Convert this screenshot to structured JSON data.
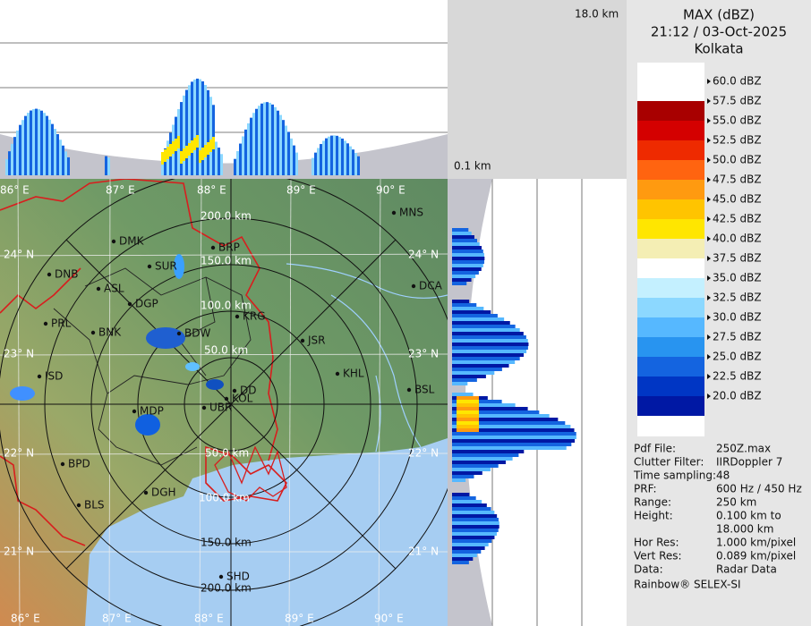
{
  "header": {
    "product": "MAX (dBZ)",
    "datetime": "21:12 / 03-Oct-2025",
    "station": "Kolkata"
  },
  "profile": {
    "top_height": "18.0 km",
    "bottom_height": "0.1 km"
  },
  "legend": {
    "labels": [
      "60.0 dBZ",
      "57.5 dBZ",
      "55.0 dBZ",
      "52.5 dBZ",
      "50.0 dBZ",
      "47.5 dBZ",
      "45.0 dBZ",
      "42.5 dBZ",
      "40.0 dBZ",
      "37.5 dBZ",
      "35.0 dBZ",
      "32.5 dBZ",
      "30.0 dBZ",
      "27.5 dBZ",
      "25.0 dBZ",
      "22.5 dBZ",
      "20.0 dBZ"
    ],
    "colors": [
      "#a80000",
      "#d40000",
      "#ee2a00",
      "#ff6410",
      "#ff9a10",
      "#ffc400",
      "#ffe600",
      "#f4eeb4",
      "#ffffff",
      "#c4f0ff",
      "#8cd8ff",
      "#56b8ff",
      "#2894f0",
      "#1464e0",
      "#0036c4",
      "#0018a4"
    ]
  },
  "map": {
    "lon_labels": [
      "86° E",
      "87° E",
      "88° E",
      "89° E",
      "90° E"
    ],
    "lat_labels": [
      "24° N",
      "23° N",
      "22° N",
      "21° N"
    ],
    "ring_labels": [
      "50.0 km",
      "100.0 km",
      "150.0 km",
      "200.0 km"
    ],
    "cities": [
      "MNS",
      "BRP",
      "DMK",
      "SUR",
      "DNB",
      "ASL",
      "DGP",
      "KRG",
      "PRL",
      "BNK",
      "BDW",
      "JSR",
      "ISD",
      "KHL",
      "BSL",
      "DD",
      "KOL",
      "UBR",
      "MDP",
      "BPD",
      "DGH",
      "BLS",
      "SHD",
      "DCA"
    ]
  },
  "info": {
    "rows": [
      {
        "key": "Pdf File:",
        "lines": [
          "250Z.max"
        ]
      },
      {
        "key": "Clutter Filter:",
        "lines": [
          "IIRDoppler 7"
        ]
      },
      {
        "key": "Time sampling:",
        "lines": [
          "48"
        ]
      },
      {
        "key": "PRF:",
        "lines": [
          "600 Hz / 450 Hz"
        ]
      },
      {
        "key": "Range:",
        "lines": [
          "250 km"
        ]
      },
      {
        "key": "Height:",
        "lines": [
          "0.100 km to",
          "18.000 km"
        ]
      },
      {
        "key": "Hor Res:",
        "lines": [
          "1.000 km/pixel"
        ]
      },
      {
        "key": "Vert Res:",
        "lines": [
          "0.089 km/pixel"
        ]
      },
      {
        "key": "Data:",
        "lines": [
          "Radar Data"
        ]
      }
    ],
    "footer": "Rainbow® SELEX-SI"
  }
}
